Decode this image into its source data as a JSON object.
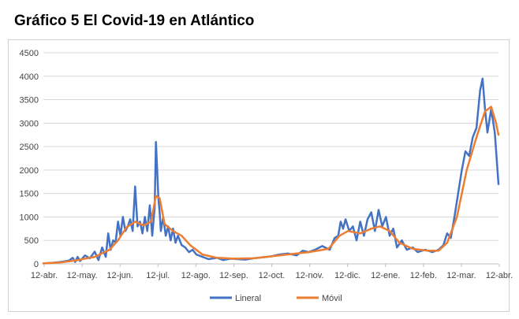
{
  "title": "Gráfico 5 El Covid-19 en Atlántico",
  "chart_data": {
    "type": "line",
    "title": "Gráfico 5 El Covid-19 en Atlántico",
    "xlabel": "",
    "ylabel": "",
    "ylim": [
      0,
      4500
    ],
    "y_ticks": [
      "0",
      "500",
      "1000",
      "1500",
      "2000",
      "2500",
      "3000",
      "3500",
      "4000",
      "4500"
    ],
    "x_tick_labels": [
      "12-abr.",
      "12-may.",
      "12-jun.",
      "12-jul.",
      "12-ago.",
      "12-sep.",
      "12-oct.",
      "12-nov.",
      "12-dic.",
      "12-ene.",
      "12-feb.",
      "12-mar.",
      "12-abr."
    ],
    "grid": true,
    "legend_position": "bottom",
    "x_start": "2020-04-12",
    "x_end": "2021-04-19",
    "series": [
      {
        "name": "Lineral",
        "color": "#4472C4",
        "points": [
          [
            "2020-04-12",
            10
          ],
          [
            "2020-04-19",
            20
          ],
          [
            "2020-04-26",
            40
          ],
          [
            "2020-05-03",
            70
          ],
          [
            "2020-05-06",
            130
          ],
          [
            "2020-05-08",
            40
          ],
          [
            "2020-05-10",
            150
          ],
          [
            "2020-05-12",
            60
          ],
          [
            "2020-05-16",
            180
          ],
          [
            "2020-05-20",
            120
          ],
          [
            "2020-05-24",
            260
          ],
          [
            "2020-05-27",
            80
          ],
          [
            "2020-05-30",
            350
          ],
          [
            "2020-06-02",
            150
          ],
          [
            "2020-06-04",
            650
          ],
          [
            "2020-06-06",
            300
          ],
          [
            "2020-06-08",
            500
          ],
          [
            "2020-06-10",
            450
          ],
          [
            "2020-06-12",
            900
          ],
          [
            "2020-06-14",
            600
          ],
          [
            "2020-06-16",
            1000
          ],
          [
            "2020-06-18",
            700
          ],
          [
            "2020-06-20",
            800
          ],
          [
            "2020-06-22",
            950
          ],
          [
            "2020-06-24",
            700
          ],
          [
            "2020-06-26",
            1650
          ],
          [
            "2020-06-28",
            800
          ],
          [
            "2020-06-30",
            900
          ],
          [
            "2020-07-02",
            650
          ],
          [
            "2020-07-04",
            1000
          ],
          [
            "2020-07-06",
            700
          ],
          [
            "2020-07-08",
            1250
          ],
          [
            "2020-07-10",
            600
          ],
          [
            "2020-07-12",
            1200
          ],
          [
            "2020-07-13",
            2600
          ],
          [
            "2020-07-14",
            2000
          ],
          [
            "2020-07-15",
            1400
          ],
          [
            "2020-07-16",
            1100
          ],
          [
            "2020-07-17",
            700
          ],
          [
            "2020-07-19",
            1000
          ],
          [
            "2020-07-21",
            600
          ],
          [
            "2020-07-23",
            800
          ],
          [
            "2020-07-25",
            500
          ],
          [
            "2020-07-27",
            750
          ],
          [
            "2020-07-29",
            450
          ],
          [
            "2020-07-31",
            600
          ],
          [
            "2020-08-03",
            400
          ],
          [
            "2020-08-06",
            350
          ],
          [
            "2020-08-09",
            250
          ],
          [
            "2020-08-12",
            300
          ],
          [
            "2020-08-15",
            200
          ],
          [
            "2020-08-20",
            150
          ],
          [
            "2020-08-25",
            100
          ],
          [
            "2020-09-01",
            130
          ],
          [
            "2020-09-06",
            80
          ],
          [
            "2020-09-12",
            110
          ],
          [
            "2020-09-18",
            100
          ],
          [
            "2020-09-24",
            90
          ],
          [
            "2020-10-01",
            120
          ],
          [
            "2020-10-08",
            140
          ],
          [
            "2020-10-15",
            160
          ],
          [
            "2020-10-22",
            200
          ],
          [
            "2020-10-29",
            220
          ],
          [
            "2020-11-05",
            180
          ],
          [
            "2020-11-10",
            280
          ],
          [
            "2020-11-15",
            250
          ],
          [
            "2020-11-20",
            300
          ],
          [
            "2020-11-26",
            380
          ],
          [
            "2020-12-02",
            300
          ],
          [
            "2020-12-06",
            550
          ],
          [
            "2020-12-09",
            600
          ],
          [
            "2020-12-11",
            900
          ],
          [
            "2020-12-13",
            750
          ],
          [
            "2020-12-15",
            950
          ],
          [
            "2020-12-18",
            700
          ],
          [
            "2020-12-21",
            800
          ],
          [
            "2020-12-24",
            500
          ],
          [
            "2020-12-27",
            900
          ],
          [
            "2020-12-30",
            600
          ],
          [
            "2021-01-02",
            950
          ],
          [
            "2021-01-05",
            1100
          ],
          [
            "2021-01-08",
            700
          ],
          [
            "2021-01-11",
            1150
          ],
          [
            "2021-01-14",
            800
          ],
          [
            "2021-01-17",
            1000
          ],
          [
            "2021-01-20",
            600
          ],
          [
            "2021-01-23",
            750
          ],
          [
            "2021-01-26",
            350
          ],
          [
            "2021-01-30",
            500
          ],
          [
            "2021-02-03",
            300
          ],
          [
            "2021-02-08",
            350
          ],
          [
            "2021-02-12",
            250
          ],
          [
            "2021-02-18",
            300
          ],
          [
            "2021-02-24",
            250
          ],
          [
            "2021-03-01",
            300
          ],
          [
            "2021-03-05",
            400
          ],
          [
            "2021-03-08",
            650
          ],
          [
            "2021-03-11",
            550
          ],
          [
            "2021-03-14",
            1000
          ],
          [
            "2021-03-17",
            1500
          ],
          [
            "2021-03-20",
            2000
          ],
          [
            "2021-03-23",
            2400
          ],
          [
            "2021-03-26",
            2300
          ],
          [
            "2021-03-29",
            2700
          ],
          [
            "2021-04-01",
            2900
          ],
          [
            "2021-04-04",
            3700
          ],
          [
            "2021-04-06",
            3950
          ],
          [
            "2021-04-08",
            3300
          ],
          [
            "2021-04-10",
            2800
          ],
          [
            "2021-04-13",
            3300
          ],
          [
            "2021-04-16",
            2800
          ],
          [
            "2021-04-19",
            1700
          ]
        ]
      },
      {
        "name": "Móvil",
        "color": "#ED7D31",
        "points": [
          [
            "2020-04-12",
            10
          ],
          [
            "2020-04-26",
            30
          ],
          [
            "2020-05-10",
            80
          ],
          [
            "2020-05-24",
            150
          ],
          [
            "2020-06-05",
            300
          ],
          [
            "2020-06-12",
            500
          ],
          [
            "2020-06-19",
            780
          ],
          [
            "2020-06-26",
            900
          ],
          [
            "2020-07-03",
            820
          ],
          [
            "2020-07-09",
            900
          ],
          [
            "2020-07-13",
            1450
          ],
          [
            "2020-07-16",
            1400
          ],
          [
            "2020-07-20",
            850
          ],
          [
            "2020-07-27",
            700
          ],
          [
            "2020-08-03",
            600
          ],
          [
            "2020-08-10",
            400
          ],
          [
            "2020-08-20",
            200
          ],
          [
            "2020-09-01",
            130
          ],
          [
            "2020-09-15",
            110
          ],
          [
            "2020-10-01",
            120
          ],
          [
            "2020-10-15",
            160
          ],
          [
            "2020-11-01",
            210
          ],
          [
            "2020-11-15",
            250
          ],
          [
            "2020-12-01",
            320
          ],
          [
            "2020-12-10",
            600
          ],
          [
            "2020-12-17",
            700
          ],
          [
            "2020-12-27",
            650
          ],
          [
            "2021-01-05",
            750
          ],
          [
            "2021-01-12",
            800
          ],
          [
            "2021-01-20",
            700
          ],
          [
            "2021-01-28",
            450
          ],
          [
            "2021-02-08",
            320
          ],
          [
            "2021-02-20",
            280
          ],
          [
            "2021-03-01",
            280
          ],
          [
            "2021-03-08",
            450
          ],
          [
            "2021-03-16",
            1000
          ],
          [
            "2021-03-24",
            2000
          ],
          [
            "2021-04-01",
            2700
          ],
          [
            "2021-04-08",
            3250
          ],
          [
            "2021-04-13",
            3350
          ],
          [
            "2021-04-17",
            3000
          ],
          [
            "2021-04-19",
            2750
          ]
        ]
      }
    ]
  }
}
